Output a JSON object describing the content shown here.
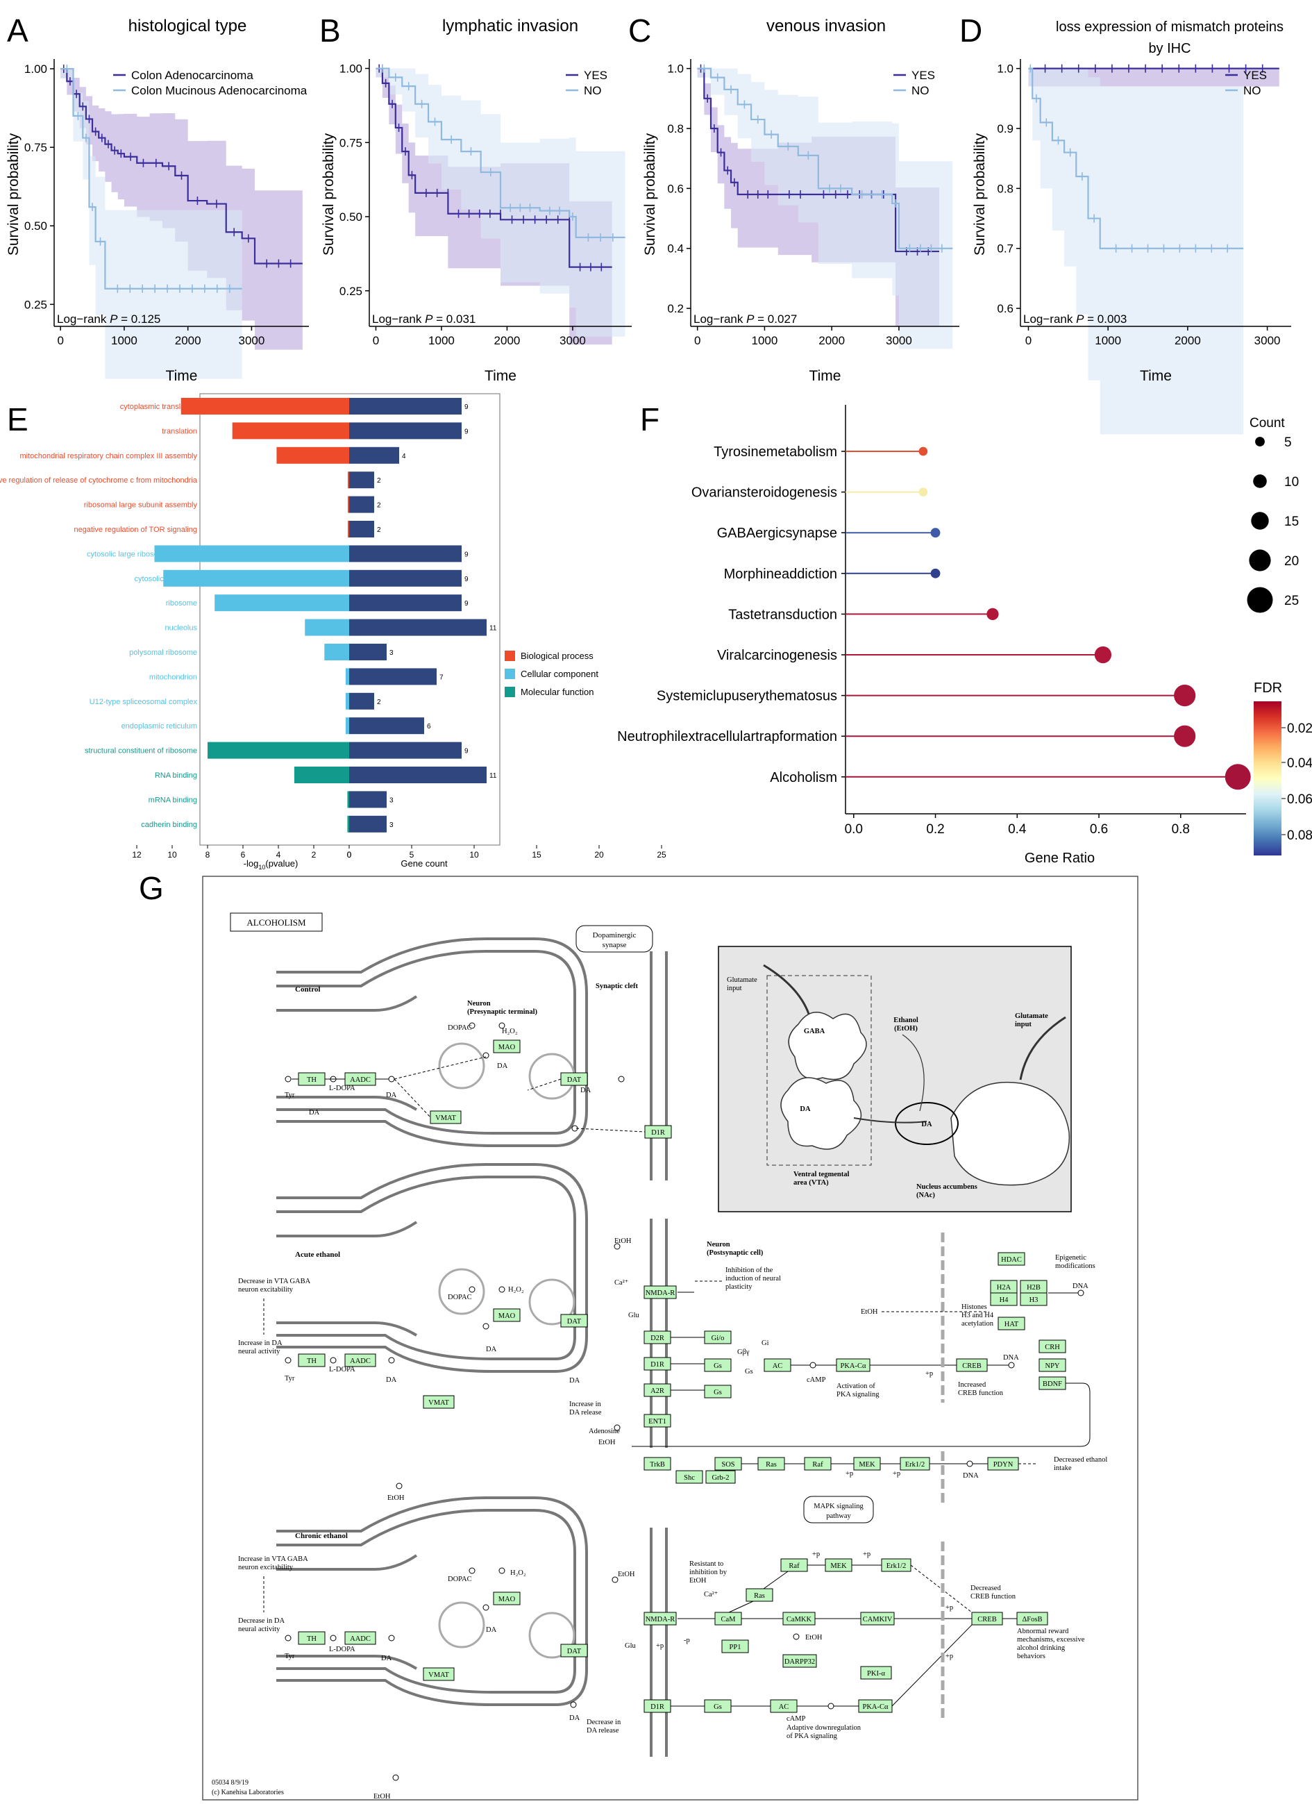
{
  "colors": {
    "dark": "#3b2d9a",
    "light": "#8fb9de",
    "dark_band": "#b9a6dc",
    "light_band": "#d8e7f5",
    "bp": "#ee4b2b",
    "cc": "#56c1e4",
    "mf": "#129a8c",
    "gene_bar": "#30467f",
    "kegg_green": "#bff5bf"
  },
  "panels": {
    "A": {
      "letter": "A",
      "title": "histological type",
      "xlabel": "Time",
      "ylabel": "Survival probability",
      "pvalue_prefix": "Log−rank ",
      "pvalue_p": "P",
      "pvalue_value": " = 0.125",
      "legend": [
        "Colon Adenocarcinoma",
        "Colon Mucinous Adenocarcinoma"
      ],
      "xticks": [
        "0",
        "1000",
        "2000",
        "3000"
      ],
      "yticks": [
        "1.00",
        "0.75",
        "0.50",
        "0.25"
      ]
    },
    "B": {
      "letter": "B",
      "title": "lymphatic invasion",
      "xlabel": "Time",
      "ylabel": "Survival probability",
      "pvalue_prefix": "Log−rank ",
      "pvalue_p": "P",
      "pvalue_value": " = 0.031",
      "legend": [
        "YES",
        "NO"
      ],
      "xticks": [
        "0",
        "1000",
        "2000",
        "3000"
      ],
      "yticks": [
        "1.00",
        "0.75",
        "0.50",
        "0.25"
      ]
    },
    "C": {
      "letter": "C",
      "title": "venous invasion",
      "xlabel": "Time",
      "ylabel": "Survival probability",
      "pvalue_prefix": "Log−rank ",
      "pvalue_p": "P",
      "pvalue_value": " = 0.027",
      "legend": [
        "YES",
        "NO"
      ],
      "xticks": [
        "0",
        "1000",
        "2000",
        "3000"
      ],
      "yticks": [
        "1.0",
        "0.8",
        "0.6",
        "0.4",
        "0.2"
      ]
    },
    "D": {
      "letter": "D",
      "title": "loss expression of mismatch proteins",
      "title2": "by IHC",
      "xlabel": "Time",
      "ylabel": "Survival probability",
      "pvalue_prefix": "Log−rank ",
      "pvalue_p": "P",
      "pvalue_value": " = 0.003",
      "legend": [
        "YES",
        "NO"
      ],
      "xticks": [
        "0",
        "1000",
        "2000",
        "3000"
      ],
      "yticks": [
        "1.0",
        "0.9",
        "0.8",
        "0.7",
        "0.6"
      ]
    },
    "E": {
      "letter": "E",
      "xlabel_left_prefix": "-log",
      "xlabel_left_sub": "10",
      "xlabel_left_suffix": "(pvalue)",
      "xlabel_right": "Gene count",
      "legend": [
        "Biological process",
        "Cellular component",
        "Molecular function"
      ],
      "left_ticks": [
        "12",
        "10",
        "8",
        "6",
        "4",
        "2",
        "0"
      ],
      "right_ticks": [
        "0",
        "5",
        "10",
        "15",
        "20",
        "25"
      ]
    },
    "F": {
      "letter": "F",
      "xlabel": "Gene Ratio",
      "count_title": "Count",
      "count_labels": [
        "5",
        "10",
        "15",
        "20",
        "25"
      ],
      "fdr_title": "FDR",
      "fdr_labels": [
        "0.02",
        "0.04",
        "0.06",
        "0.08"
      ],
      "xticks": [
        "0.0",
        "0.2",
        "0.4",
        "0.6",
        "0.8"
      ]
    },
    "G": {
      "letter": "G"
    }
  },
  "chart_data": [
    {
      "type": "line",
      "panel": "A",
      "title": "histological type",
      "xlabel": "Time",
      "ylabel": "Survival probability",
      "xlim": [
        -100,
        3900
      ],
      "ylim": [
        0.18,
        1.02
      ],
      "series": [
        {
          "name": "Colon Adenocarcinoma",
          "x": [
            0,
            100,
            200,
            300,
            400,
            500,
            600,
            700,
            800,
            900,
            1000,
            1200,
            1400,
            1600,
            1800,
            2000,
            2300,
            2600,
            2850,
            3050,
            3800
          ],
          "y": [
            1.0,
            0.96,
            0.92,
            0.88,
            0.84,
            0.8,
            0.78,
            0.76,
            0.74,
            0.73,
            0.72,
            0.7,
            0.7,
            0.69,
            0.66,
            0.58,
            0.57,
            0.48,
            0.46,
            0.38,
            0.38
          ]
        },
        {
          "name": "Colon Mucinous Adenocarcinoma",
          "x": [
            0,
            200,
            350,
            450,
            550,
            700,
            2850
          ],
          "y": [
            1.0,
            0.85,
            0.78,
            0.56,
            0.45,
            0.3,
            0.3
          ]
        }
      ]
    },
    {
      "type": "line",
      "panel": "B",
      "title": "lymphatic invasion",
      "xlabel": "Time",
      "ylabel": "Survival probability",
      "xlim": [
        -100,
        3900
      ],
      "ylim": [
        0.13,
        1.02
      ],
      "series": [
        {
          "name": "YES",
          "x": [
            0,
            100,
            200,
            300,
            400,
            500,
            600,
            1100,
            1100,
            1900,
            1900,
            2950,
            2950,
            3600
          ],
          "y": [
            1.0,
            0.95,
            0.88,
            0.8,
            0.72,
            0.64,
            0.58,
            0.58,
            0.51,
            0.51,
            0.49,
            0.49,
            0.33,
            0.33
          ]
        },
        {
          "name": "NO",
          "x": [
            0,
            200,
            400,
            600,
            800,
            1000,
            1300,
            1600,
            1900,
            2500,
            2950,
            3050,
            3800
          ],
          "y": [
            1.0,
            0.97,
            0.94,
            0.88,
            0.82,
            0.76,
            0.72,
            0.65,
            0.53,
            0.52,
            0.5,
            0.43,
            0.43
          ]
        }
      ]
    },
    {
      "type": "line",
      "panel": "C",
      "title": "venous invasion",
      "xlabel": "Time",
      "ylabel": "Survival probability",
      "xlim": [
        -100,
        3900
      ],
      "ylim": [
        0.14,
        1.02
      ],
      "series": [
        {
          "name": "YES",
          "x": [
            0,
            100,
            200,
            300,
            400,
            500,
            600,
            1200,
            1700,
            2950,
            3600
          ],
          "y": [
            1.0,
            0.9,
            0.8,
            0.72,
            0.66,
            0.62,
            0.58,
            0.58,
            0.58,
            0.39,
            0.39
          ]
        },
        {
          "name": "NO",
          "x": [
            0,
            200,
            400,
            600,
            800,
            1000,
            1200,
            1500,
            1800,
            2300,
            2900,
            3000,
            3800
          ],
          "y": [
            1.0,
            0.97,
            0.93,
            0.88,
            0.83,
            0.78,
            0.74,
            0.71,
            0.6,
            0.58,
            0.55,
            0.4,
            0.4
          ]
        }
      ]
    },
    {
      "type": "line",
      "panel": "D",
      "title": "loss expression of mismatch proteins by IHC",
      "xlabel": "Time",
      "ylabel": "Survival probability",
      "xlim": [
        -100,
        3300
      ],
      "ylim": [
        0.57,
        1.01
      ],
      "series": [
        {
          "name": "YES",
          "x": [
            0,
            3150
          ],
          "y": [
            1.0,
            1.0
          ]
        },
        {
          "name": "NO",
          "x": [
            0,
            50,
            150,
            300,
            450,
            600,
            750,
            900,
            2700
          ],
          "y": [
            1.0,
            0.95,
            0.91,
            0.88,
            0.86,
            0.82,
            0.75,
            0.7,
            0.7
          ]
        }
      ]
    },
    {
      "type": "bar",
      "panel": "E",
      "orientation": "horizontal",
      "terms": [
        {
          "name": "cytoplasmic translation",
          "category": "Biological process",
          "neglog10p": 9.5,
          "count": 9
        },
        {
          "name": "translation",
          "category": "Biological process",
          "neglog10p": 6.6,
          "count": 9
        },
        {
          "name": "mitochondrial respiratory chain complex III assembly",
          "category": "Biological process",
          "neglog10p": 4.1,
          "count": 4
        },
        {
          "name": "negative regulation of release of cytochrome c from mitochondria",
          "category": "Biological process",
          "neglog10p": 0,
          "count": 2
        },
        {
          "name": "ribosomal large subunit assembly",
          "category": "Biological process",
          "neglog10p": 0,
          "count": 2
        },
        {
          "name": "negative regulation of TOR signaling",
          "category": "Biological process",
          "neglog10p": 0,
          "count": 2
        },
        {
          "name": "cytosolic large ribosomal subunit",
          "category": "Cellular component",
          "neglog10p": 11,
          "count": 9
        },
        {
          "name": "cytosolic ribosome",
          "category": "Cellular component",
          "neglog10p": 10.5,
          "count": 9
        },
        {
          "name": "ribosome",
          "category": "Cellular component",
          "neglog10p": 7.6,
          "count": 9
        },
        {
          "name": "nucleolus",
          "category": "Cellular component",
          "neglog10p": 2.5,
          "count": 11
        },
        {
          "name": "polysomal ribosome",
          "category": "Cellular component",
          "neglog10p": 1.4,
          "count": 3
        },
        {
          "name": "mitochondrion",
          "category": "Cellular component",
          "neglog10p": 0.2,
          "count": 7
        },
        {
          "name": "U12-type spliceosomal complex",
          "category": "Cellular component",
          "neglog10p": 0.2,
          "count": 2
        },
        {
          "name": "endoplasmic reticulum",
          "category": "Cellular component",
          "neglog10p": 0.2,
          "count": 6
        },
        {
          "name": "structural constituent of ribosome",
          "category": "Molecular function",
          "neglog10p": 8.0,
          "count": 9
        },
        {
          "name": "RNA binding",
          "category": "Molecular function",
          "neglog10p": 3.1,
          "count": 11
        },
        {
          "name": "mRNA binding",
          "category": "Molecular function",
          "neglog10p": 0.1,
          "count": 3
        },
        {
          "name": "cadherin binding",
          "category": "Molecular function",
          "neglog10p": 0.1,
          "count": 3
        }
      ]
    },
    {
      "type": "scatter",
      "panel": "F",
      "xlabel": "Gene Ratio",
      "xlim": [
        -0.02,
        0.96
      ],
      "pathways": [
        {
          "name": "Tyrosinemetabolism",
          "ratio": 0.17,
          "count": 4,
          "color": "#e35032"
        },
        {
          "name": "Ovariansteroidogenesis",
          "ratio": 0.17,
          "count": 4,
          "color": "#f6ecaa"
        },
        {
          "name": "GABAergicsynapse",
          "ratio": 0.2,
          "count": 5,
          "color": "#3e5aa8"
        },
        {
          "name": "Morphineaddiction",
          "ratio": 0.2,
          "count": 5,
          "color": "#30408f"
        },
        {
          "name": "Tastetransduction",
          "ratio": 0.34,
          "count": 8,
          "color": "#b2173a"
        },
        {
          "name": "Viralcarcinogenesis",
          "ratio": 0.61,
          "count": 14,
          "color": "#b0173b"
        },
        {
          "name": "Systemiclupuserythematosus",
          "ratio": 0.81,
          "count": 20,
          "color": "#a9163a"
        },
        {
          "name": "Neutrophilextracellulartrapformation",
          "ratio": 0.81,
          "count": 20,
          "color": "#a9163a"
        },
        {
          "name": "Alcoholism",
          "ratio": 0.94,
          "count": 25,
          "color": "#a5133a"
        }
      ]
    }
  ],
  "kegg": {
    "title": "ALCOHOLISM",
    "dopaminergic": "Dopaminergic",
    "synapse": "synapse",
    "control": "Control",
    "acute": "Acute ethanol",
    "chronic": "Chronic ethanol",
    "synaptic_cleft": "Synaptic cleft",
    "neuron_pre_1": "Neuron",
    "neuron_pre_2": "(Presynaptic terminal)",
    "neuron_post_1": "Neuron",
    "neuron_post_2": "(Postsynaptic cell)",
    "genes": {
      "TH": "TH",
      "AADC": "AADC",
      "MAO": "MAO",
      "VMAT": "VMAT",
      "DAT": "DAT",
      "D1R": "D1R",
      "NMDAR": "NMDA-R",
      "D2R": "D2R",
      "A2R": "A2R",
      "ENT1": "ENT1",
      "TrkB": "TrkB",
      "Shc": "Shc",
      "Grb2": "Grb-2",
      "SOS": "SOS",
      "Ras": "Ras",
      "Raf": "Raf",
      "MEK": "MEK",
      "Erk": "Erk1/2",
      "PDYN": "PDYN",
      "Gio": "Gi/o",
      "Gs": "Gs",
      "AC": "AC",
      "PKA": "PKA-Cα",
      "CREB": "CREB",
      "CRH": "CRH",
      "NPY": "NPY",
      "BDNF": "BDNF",
      "HDAC": "HDAC",
      "H2A": "H2A",
      "H2B": "H2B",
      "H3": "H3",
      "H4": "H4",
      "HAT": "HAT",
      "CaM": "CaM",
      "CaMKK": "CaMKK",
      "CAMKIV": "CAMKIV",
      "PP1": "PP1",
      "DARPP32": "DARPP32",
      "PKIa": "PKI-α",
      "dFosB": "ΔFosB"
    },
    "labels": {
      "Tyr": "Tyr",
      "LDOPA": "L-DOPA",
      "DA": "DA",
      "DOPAC": "DOPAC",
      "H2O2": "H₂O₂",
      "EtOH": "EtOH",
      "Ca": "Ca²⁺",
      "Glu": "Glu",
      "Adenosine": "Adenosine",
      "cAMP": "cAMP",
      "DNA": "DNA",
      "Gi": "Gi",
      "Gbg": "Gβγ",
      "Gs_small": "Gs",
      "p": "+p",
      "mp": "-p",
      "inhibition": [
        "Inhibition of the",
        "induction of neural",
        "plasticity"
      ],
      "histones": [
        "Histones",
        "H3 and H4",
        "acetylation"
      ],
      "epigenetic": [
        "Epigenetic",
        "modifications"
      ],
      "activation_pka": [
        "Activation of",
        "PKA signaling"
      ],
      "increased_creb": [
        "Increased",
        "CREB function"
      ],
      "increase_da_rel": [
        "Increase in",
        "DA release"
      ],
      "decreased_ethanol": [
        "Decreased ethanol",
        "intake"
      ],
      "mapk": [
        "MAPK signaling",
        "pathway"
      ],
      "decrease_vta": [
        "Decrease in VTA GABA",
        "neuron excitability"
      ],
      "increase_da_act": [
        "Increase in DA",
        "neural activity"
      ],
      "increase_vta": [
        "Increase in VTA GABA",
        "neuron excitability"
      ],
      "decrease_da_act": [
        "Decrease in DA",
        "neural activity"
      ],
      "resistant": [
        "Resistant to",
        "inhibition by",
        "EtOH"
      ],
      "decreased_creb": [
        "Decreased",
        "CREB function"
      ],
      "abnormal": [
        "Abnormal reward",
        "mechanisms, excessive",
        "alcohol drinking",
        "behaviors"
      ],
      "decrease_da_rel": [
        "Decrease in",
        "DA release"
      ],
      "adaptive": [
        "Adaptive downregulation",
        "of PKA signaling"
      ],
      "glutamate_input": [
        "Glutamate",
        "input"
      ],
      "gaba": "GABA",
      "ethanol": [
        "Ethanol",
        "(EtOH)"
      ],
      "vta": [
        "Ventral tegmental",
        "area (VTA)"
      ],
      "nac": [
        "Nucleus accumbens",
        "(NAc)"
      ],
      "footer1": "05034 8/9/19",
      "footer2": "(c) Kanehisa Laboratories"
    }
  }
}
